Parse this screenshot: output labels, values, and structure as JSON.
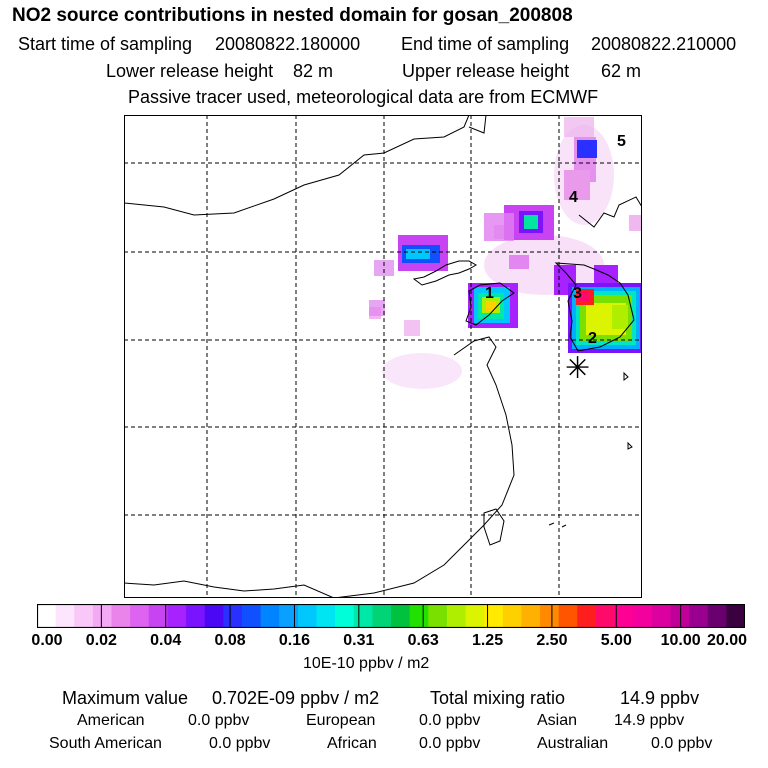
{
  "title": "NO2 source contributions in nested domain for gosan_200808",
  "sampling": {
    "start_label": "Start time of sampling",
    "start": "20080822.180000",
    "end_label": "End time of sampling",
    "end": "20080822.210000"
  },
  "release": {
    "lower_label": "Lower release height",
    "lower": "82 m",
    "upper_label": "Upper release height",
    "upper": "62 m"
  },
  "note": "Passive tracer used, meteorological data are from ECMWF",
  "map": {
    "markers": [
      "1",
      "2",
      "3",
      "4",
      "5"
    ],
    "receptor_symbol": "✳"
  },
  "colorbar": {
    "colors": [
      "#ffffff",
      "#fde6fd",
      "#f9c8f9",
      "#f3a9f3",
      "#ea84ea",
      "#dd63f0",
      "#c844f2",
      "#a722ff",
      "#7a14ff",
      "#4a08f5",
      "#2a30ff",
      "#1050ff",
      "#0084ff",
      "#0aa0ff",
      "#00c8ff",
      "#00e5f2",
      "#00ffd8",
      "#00e8a8",
      "#00d477",
      "#00c23e",
      "#22e000",
      "#7ae000",
      "#b0ee00",
      "#dcf400",
      "#ffea00",
      "#ffd000",
      "#ffb000",
      "#ff8a00",
      "#ff5500",
      "#ff1e1e",
      "#ff0a6a",
      "#ff0094",
      "#f4009e",
      "#dd00a0",
      "#c00098",
      "#9a0090",
      "#6a0070",
      "#3a0040"
    ],
    "labels": [
      "0.00",
      "0.02",
      "0.04",
      "0.08",
      "0.16",
      "0.31",
      "0.63",
      "1.25",
      "2.50",
      "5.00",
      "10.00",
      "20.00"
    ],
    "unit": "10E-10 ppbv / m2"
  },
  "stats": {
    "max_label": "Maximum value",
    "max_value": "0.702E-09 ppbv / m2",
    "total_label": "Total mixing ratio",
    "total_value": "14.9 ppbv",
    "regions": [
      {
        "name": "American",
        "value": "0.0 ppbv"
      },
      {
        "name": "European",
        "value": "0.0 ppbv"
      },
      {
        "name": "Asian",
        "value": "14.9 ppbv"
      },
      {
        "name": "South American",
        "value": "0.0 ppbv"
      },
      {
        "name": "African",
        "value": "0.0 ppbv"
      },
      {
        "name": "Australian",
        "value": "0.0 ppbv"
      }
    ]
  }
}
